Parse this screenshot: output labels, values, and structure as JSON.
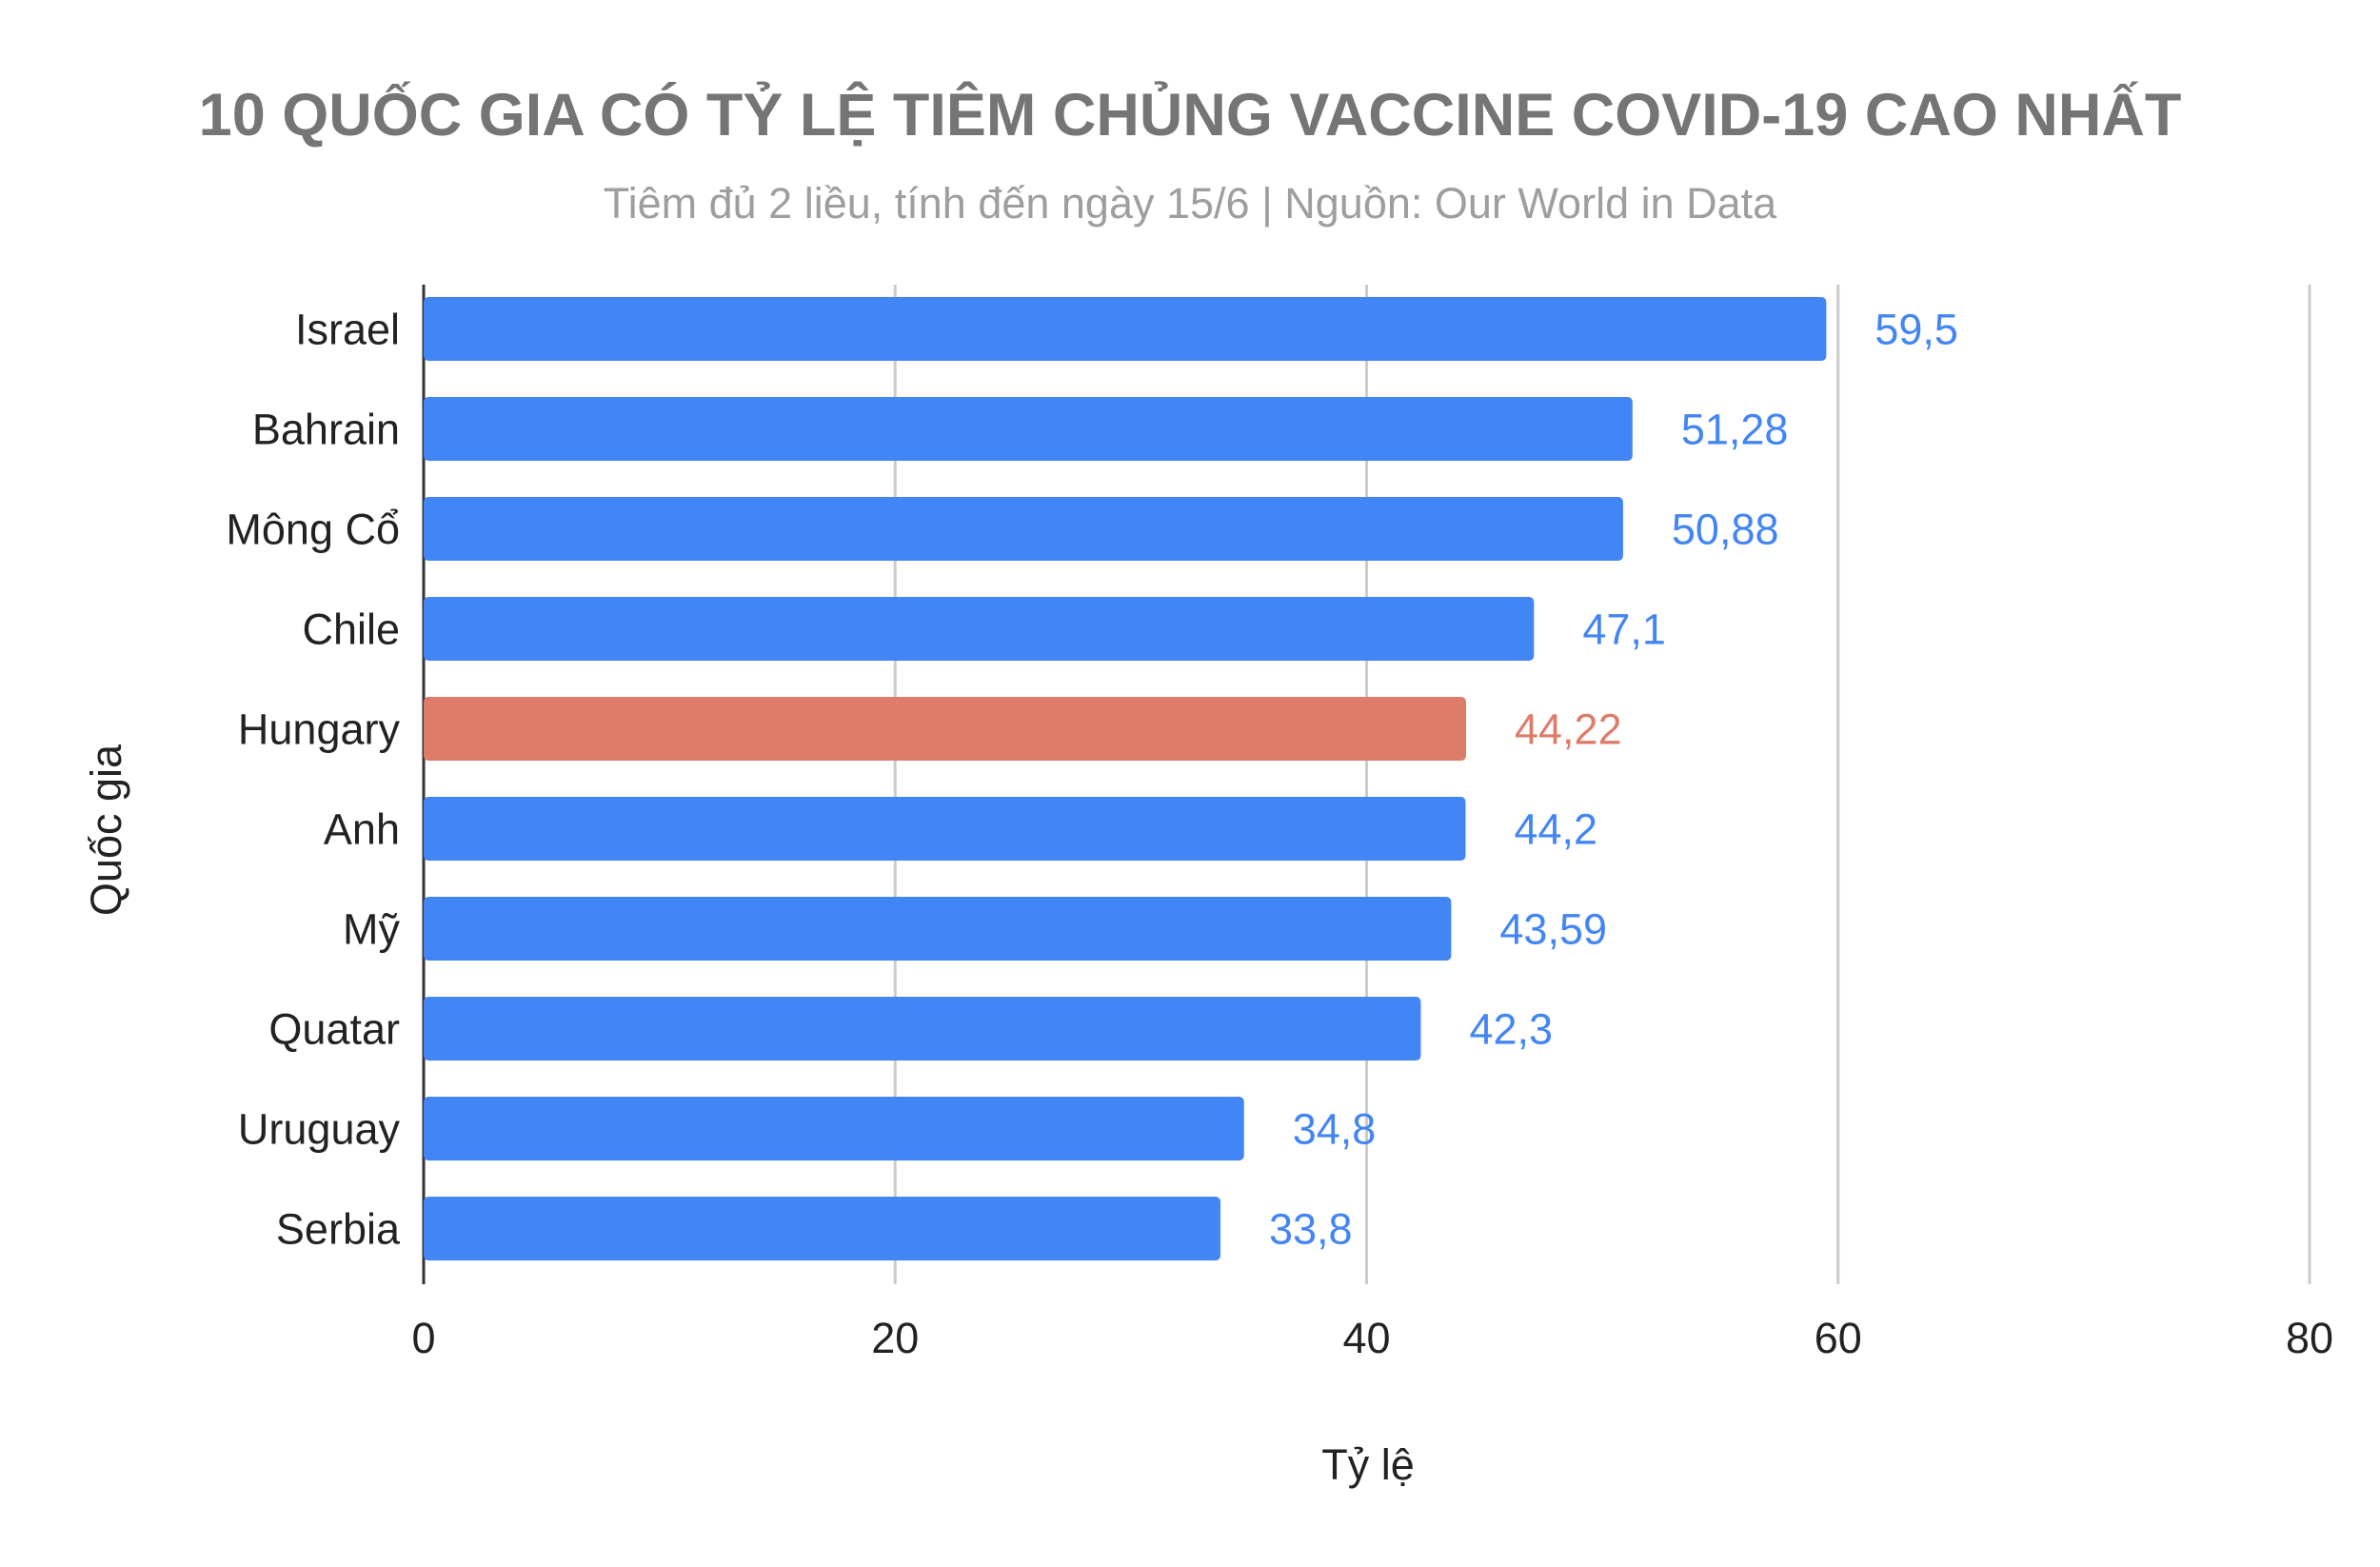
{
  "chart_data": {
    "type": "bar",
    "orientation": "horizontal",
    "title": "10 QUỐC GIA CÓ TỶ LỆ TIÊM CHỦNG VACCINE COVID-19 CAO NHẤT",
    "subtitle": "Tiêm đủ 2 liều, tính đến ngày 15/6 | Nguồn: Our World in Data",
    "xlabel": "Tỷ lệ",
    "ylabel": "Quốc gia",
    "xlim": [
      0,
      80
    ],
    "xticks": [
      0,
      20,
      40,
      60,
      80
    ],
    "grid": true,
    "categories": [
      "Israel",
      "Bahrain",
      "Mông Cổ",
      "Chile",
      "Hungary",
      "Anh",
      "Mỹ",
      "Quatar",
      "Uruguay",
      "Serbia"
    ],
    "values": [
      59.5,
      51.28,
      50.88,
      47.1,
      44.22,
      44.2,
      43.59,
      42.3,
      34.8,
      33.8
    ],
    "data_labels": [
      "59,5",
      "51,28",
      "50,88",
      "47,1",
      "44,22",
      "44,2",
      "43,59",
      "42,3",
      "34,8",
      "33,8"
    ],
    "highlight_index": 4,
    "colors": {
      "default": "#4285f4",
      "highlight": "#de7c6a",
      "title": "#757575",
      "subtitle": "#9e9e9e",
      "grid": "#cccccc",
      "axis": "#333333"
    }
  }
}
